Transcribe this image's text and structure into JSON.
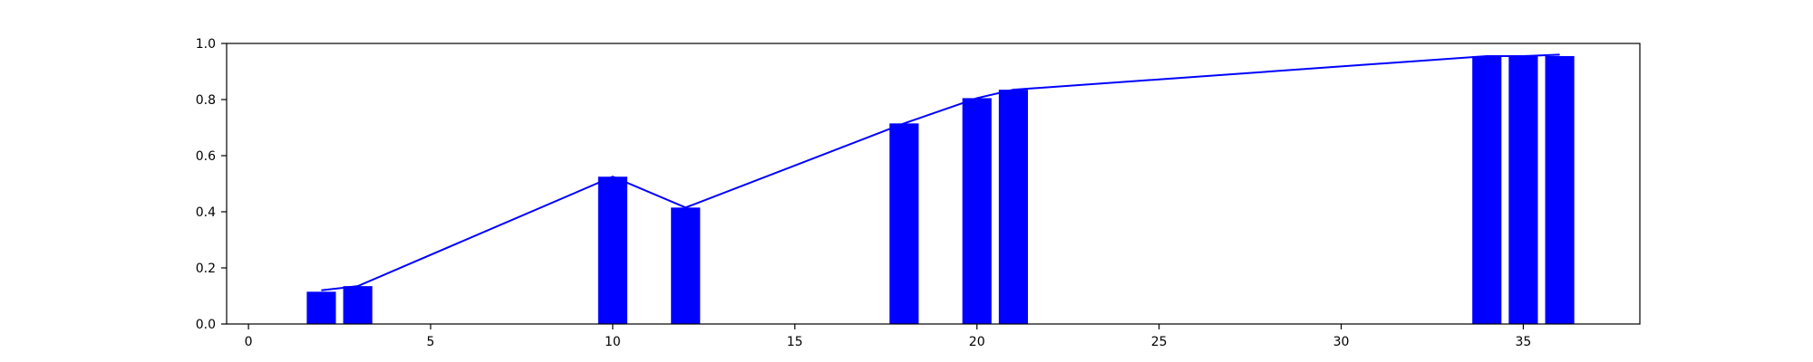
{
  "chart_data": {
    "type": "bar",
    "title": "",
    "xlabel": "",
    "ylabel": "",
    "xlim": [
      -0.6,
      38.2
    ],
    "ylim": [
      0.0,
      1.0
    ],
    "grid": false,
    "x_ticks": [
      "0",
      "5",
      "10",
      "15",
      "20",
      "25",
      "30",
      "35"
    ],
    "x_tick_values": [
      0,
      5,
      10,
      15,
      20,
      25,
      30,
      35
    ],
    "y_ticks": [
      "0.0",
      "0.2",
      "0.4",
      "0.6",
      "0.8",
      "1.0"
    ],
    "y_tick_values": [
      0.0,
      0.2,
      0.4,
      0.6,
      0.8,
      1.0
    ],
    "bar_width": 0.8,
    "series": [
      {
        "type": "bar",
        "x": [
          2,
          3,
          10,
          12,
          18,
          20,
          21,
          34,
          35,
          36
        ],
        "values": [
          0.115,
          0.135,
          0.525,
          0.415,
          0.715,
          0.805,
          0.835,
          0.955,
          0.955,
          0.955
        ],
        "color": "#0000ff"
      },
      {
        "type": "line",
        "x": [
          2,
          3,
          10,
          12,
          18,
          20,
          21,
          34,
          35,
          36
        ],
        "values": [
          0.12,
          0.135,
          0.525,
          0.415,
          0.715,
          0.805,
          0.835,
          0.955,
          0.955,
          0.96
        ],
        "color": "#0000ff"
      }
    ]
  }
}
